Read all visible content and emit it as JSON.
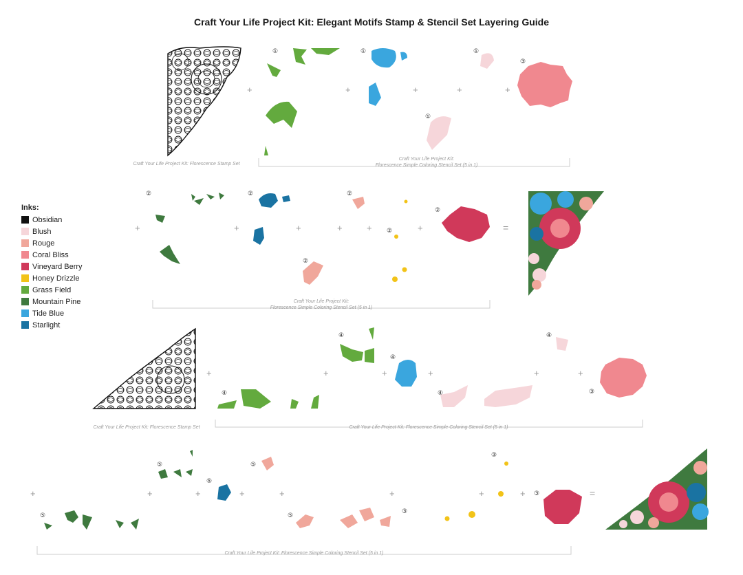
{
  "title": "Craft Your Life Project Kit: Elegant Motifs Stamp & Stencil Set Layering Guide",
  "captions": {
    "row1_stamp": "Craft Your Life Project Kit: Florescence Stamp Set",
    "row1_stencil_line1": "Craft Your Life Project Kit:",
    "row1_stencil_line2": "Florescence Simple Coloring Stencil Set (5 in 1)",
    "row2_stencil_line1": "Craft Your Life Project Kit:",
    "row2_stencil_line2": "Florescence Simple Coloring Stencil Set (5 in 1)",
    "row3_stamp": "Craft Your Life Project Kit: Florescence Stamp Set",
    "row3_stencil": "Craft Your Life Project Kit: Florescence Simple Coloring Stencil Set (5 in 1)",
    "row4_stencil": "Craft Your Life Project Kit: Florescence Simple Coloring Stencil Set (5 in 1)"
  },
  "legend": {
    "title": "Inks:",
    "items": [
      {
        "name": "Obsidian",
        "color": "#111111"
      },
      {
        "name": "Blush",
        "color": "#f6d6da"
      },
      {
        "name": "Rouge",
        "color": "#f0a79b"
      },
      {
        "name": "Coral Bliss",
        "color": "#f0888f"
      },
      {
        "name": "Vineyard Berry",
        "color": "#d0395a"
      },
      {
        "name": "Honey Drizzle",
        "color": "#f2c318"
      },
      {
        "name": "Grass Field",
        "color": "#63aa3e"
      },
      {
        "name": "Mountain Pine",
        "color": "#3f7a3f"
      },
      {
        "name": "Tide Blue",
        "color": "#3aa6de"
      },
      {
        "name": "Starlight",
        "color": "#1a73a2"
      }
    ]
  },
  "symbols": {
    "plus": "+",
    "equals": "="
  },
  "step_numbers": {
    "one": "①",
    "two": "②",
    "three": "③",
    "four": "④",
    "five": "⑤"
  }
}
